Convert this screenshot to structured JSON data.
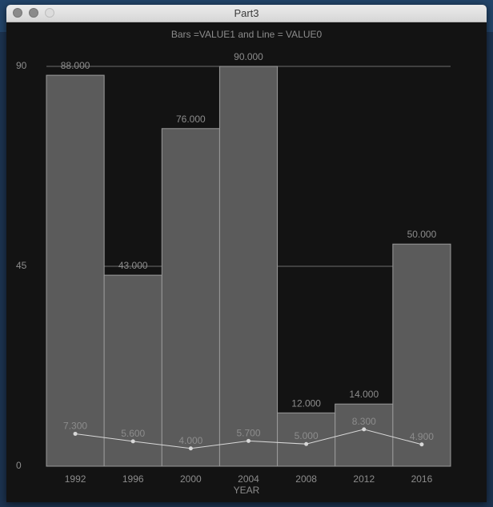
{
  "window": {
    "title": "Part3"
  },
  "colors": {
    "background": "#131313",
    "bar_fill": "#5b5b5b",
    "bar_stroke": "#9a9a9a",
    "line": "#d8d8d8",
    "text": "#8c8c8c",
    "grid": "#6e6e6e"
  },
  "chart_data": {
    "type": "bar",
    "title": "Bars =VALUE1 and Line = VALUE0",
    "xlabel": "YEAR",
    "ylabel": "",
    "categories": [
      "1992",
      "1996",
      "2000",
      "2004",
      "2008",
      "2012",
      "2016"
    ],
    "ylim": [
      0,
      90
    ],
    "yticks": [
      "0",
      "45",
      "90"
    ],
    "grid": "horizontal",
    "series": [
      {
        "name": "VALUE1",
        "kind": "bar",
        "values": [
          88.0,
          43.0,
          76.0,
          90.0,
          12.0,
          14.0,
          50.0
        ],
        "labels": [
          "88.000",
          "43.000",
          "76.000",
          "90.000",
          "12.000",
          "14.000",
          "50.000"
        ]
      },
      {
        "name": "VALUE0",
        "kind": "line",
        "values": [
          7.3,
          5.6,
          4.0,
          5.7,
          5.0,
          8.3,
          4.9
        ],
        "labels": [
          "7.300",
          "5.600",
          "4.000",
          "5.700",
          "5.000",
          "8.300",
          "4.900"
        ]
      }
    ]
  }
}
